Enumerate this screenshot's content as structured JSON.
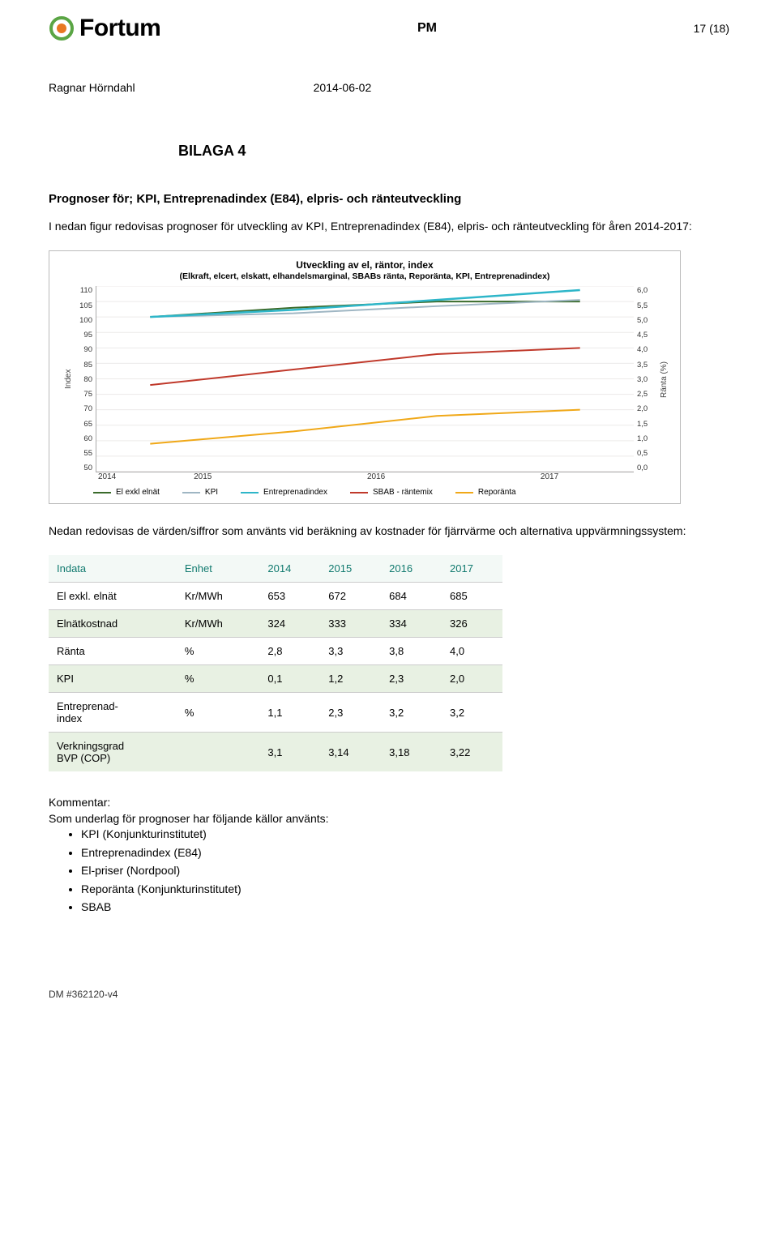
{
  "header": {
    "logo_text": "Fortum",
    "logo_color": "#000000",
    "logo_mark_outer": "#5aa544",
    "logo_mark_inner": "#e87722",
    "pm": "PM",
    "page": "17 (18)"
  },
  "byline": {
    "author": "Ragnar Hörndahl",
    "date": "2014-06-02"
  },
  "title": "BILAGA 4",
  "subtitle": "Prognoser för; KPI, Entreprenadindex (E84), elpris- och ränteutveckling",
  "intro": "I nedan figur redovisas prognoser för utveckling av KPI, Entreprenadindex (E84), elpris- och ränteutveckling för åren 2014-2017:",
  "chart": {
    "type": "line",
    "title": "Utveckling av el, räntor, index",
    "subtitle": "(Elkraft, elcert, elskatt, elhandelsmarginal, SBABs ränta, Reporänta, KPI, Entreprenadindex)",
    "left_axis": {
      "label": "Index",
      "min": 50,
      "max": 110,
      "step": 5,
      "ticks": [
        "110",
        "105",
        "100",
        "95",
        "90",
        "85",
        "80",
        "75",
        "70",
        "65",
        "60",
        "55",
        "50"
      ]
    },
    "right_axis": {
      "label": "Ränta (%)",
      "min": 0.0,
      "max": 6.0,
      "step": 0.5,
      "ticks": [
        "6,0",
        "5,5",
        "5,0",
        "4,5",
        "4,0",
        "3,5",
        "3,0",
        "2,5",
        "2,0",
        "1,5",
        "1,0",
        "0,5",
        "0,0"
      ]
    },
    "x_categories": [
      "2014",
      "2015",
      "2016",
      "2017"
    ],
    "grid_color": "#eceae9",
    "background_color": "#ffffff",
    "series": [
      {
        "name": "El exkl elnät",
        "axis": "left",
        "color": "#3a6b2b",
        "width": 2,
        "values": [
          100,
          103,
          105,
          105
        ]
      },
      {
        "name": "KPI",
        "axis": "left",
        "color": "#9fb6c3",
        "width": 2,
        "values": [
          100,
          101.2,
          103.5,
          105.5
        ]
      },
      {
        "name": "Entreprenadindex",
        "axis": "left",
        "color": "#2eb6c9",
        "width": 2.5,
        "values": [
          100,
          102.3,
          105.5,
          108.7
        ]
      },
      {
        "name": "SBAB - räntemix",
        "axis": "right",
        "color": "#c0392b",
        "width": 2,
        "values": [
          2.8,
          3.3,
          3.8,
          4.0
        ]
      },
      {
        "name": "Reporänta",
        "axis": "right",
        "color": "#f0a818",
        "width": 2,
        "values": [
          0.9,
          1.3,
          1.8,
          2.0
        ]
      }
    ]
  },
  "midtext": "Nedan redovisas de värden/siffror som använts vid beräkning av kostnader för fjärrvärme och alternativa uppvärmningssystem:",
  "table": {
    "header_color": "#117a6f",
    "header_bg": "#f3f9f6",
    "stripe_bg": "#e8f1e3",
    "columns": [
      "Indata",
      "Enhet",
      "2014",
      "2015",
      "2016",
      "2017"
    ],
    "rows": [
      {
        "stripe": false,
        "cells": [
          "El exkl. elnät",
          "Kr/MWh",
          "653",
          "672",
          "684",
          "685"
        ]
      },
      {
        "stripe": true,
        "cells": [
          "Elnätkostnad",
          "Kr/MWh",
          "324",
          "333",
          "334",
          "326"
        ]
      },
      {
        "stripe": false,
        "cells": [
          "Ränta",
          "%",
          "2,8",
          "3,3",
          "3,8",
          "4,0"
        ]
      },
      {
        "stripe": true,
        "cells": [
          "KPI",
          "%",
          "0,1",
          "1,2",
          "2,3",
          "2,0"
        ]
      },
      {
        "stripe": false,
        "cells": [
          "Entreprenad-\nindex",
          "%",
          "1,1",
          "2,3",
          "3,2",
          "3,2"
        ]
      },
      {
        "stripe": true,
        "cells": [
          "Verkningsgrad\nBVP (COP)",
          "",
          "3,1",
          "3,14",
          "3,18",
          "3,22"
        ]
      }
    ]
  },
  "comment": {
    "heading": "Kommentar:",
    "lead": "Som underlag för prognoser har följande källor använts:",
    "items": [
      "KPI (Konjunkturinstitutet)",
      "Entreprenadindex (E84)",
      "El-priser (Nordpool)",
      "Reporänta (Konjunkturinstitutet)",
      "SBAB"
    ]
  },
  "footer": "DM #362120-v4"
}
